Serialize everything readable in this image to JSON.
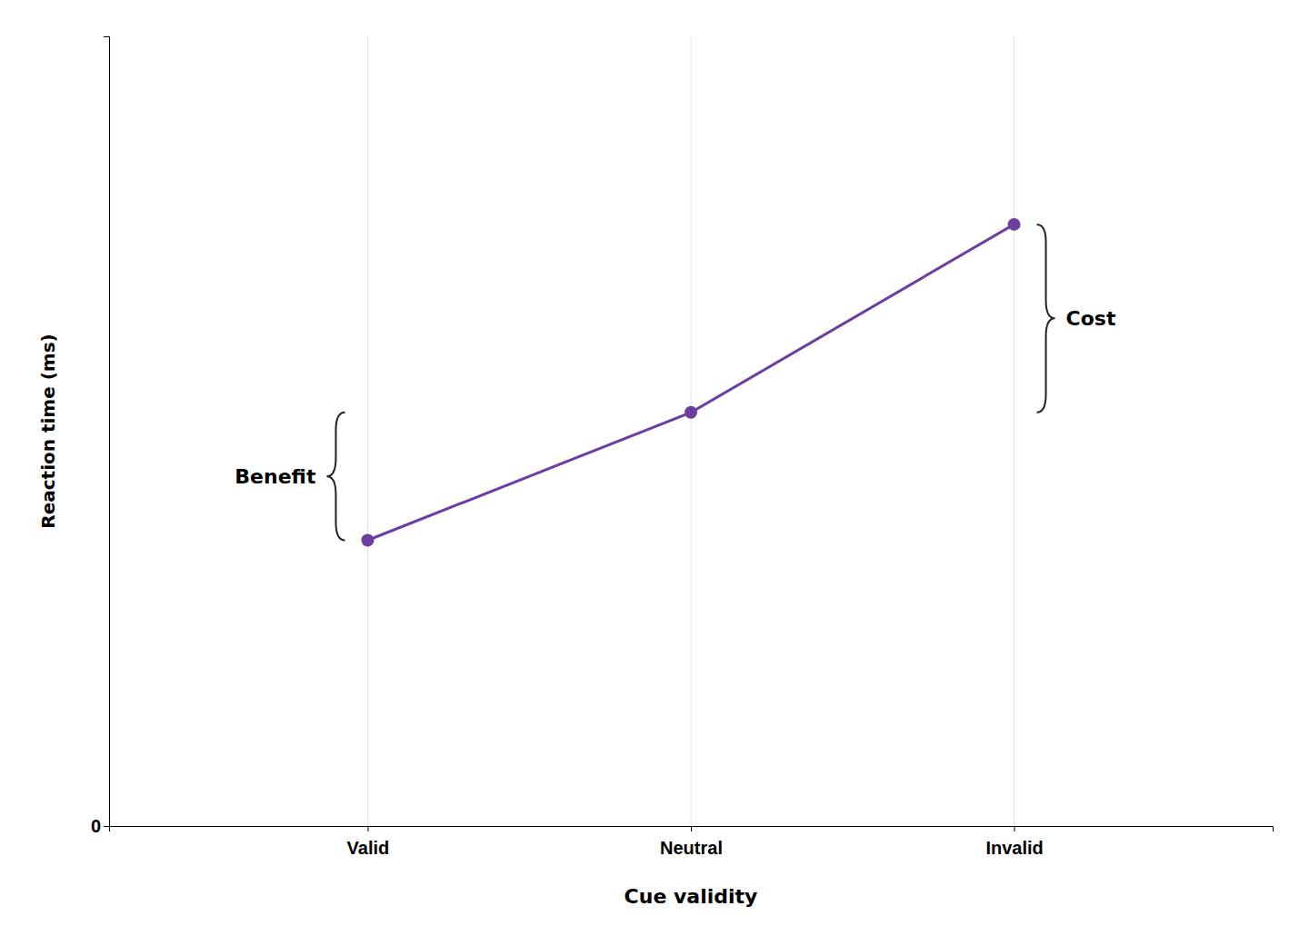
{
  "chart_data": {
    "type": "line",
    "categories": [
      "Valid",
      "Neutral",
      "Invalid"
    ],
    "values": [
      0.38,
      0.55,
      0.8
    ],
    "color": "#6B3FA0",
    "marker": "circle",
    "ylim": [
      0,
      1.05
    ],
    "yticks": [
      0
    ],
    "xlabel": "Cue validity",
    "ylabel": "Reaction time (ms)",
    "grid": true,
    "annotations": [
      "Benefit",
      "Cost"
    ]
  }
}
